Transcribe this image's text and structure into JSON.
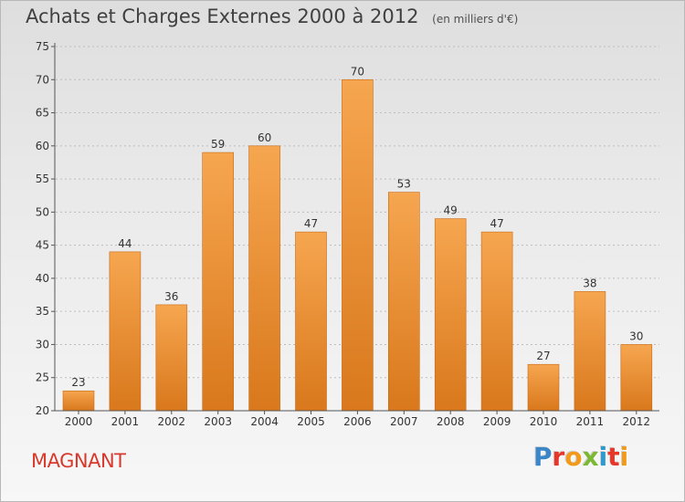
{
  "header": {
    "title": "Achats et Charges Externes 2000 à 2012",
    "subtitle": "(en milliers d'€)"
  },
  "town_name": "MAGNANT",
  "logo": {
    "text": "Proxiti",
    "letters": [
      "P",
      "r",
      "o",
      "x",
      "i",
      "t",
      "i"
    ]
  },
  "colors": {
    "bar_light": "#f6a650",
    "bar_dark": "#d9781c",
    "axis": "#555555",
    "gridline": "#bdbdbd",
    "town": "#d8392c"
  },
  "chart_data": {
    "type": "bar",
    "categories": [
      "2000",
      "2001",
      "2002",
      "2003",
      "2004",
      "2005",
      "2006",
      "2007",
      "2008",
      "2009",
      "2010",
      "2011",
      "2012"
    ],
    "values": [
      23,
      44,
      36,
      59,
      60,
      47,
      70,
      53,
      49,
      47,
      27,
      38,
      30
    ],
    "data_labels": [
      "23",
      "44",
      "36",
      "59",
      "60",
      "47",
      "70",
      "53",
      "49",
      "47",
      "27",
      "38",
      "30"
    ],
    "yticks": [
      20,
      25,
      30,
      35,
      40,
      45,
      50,
      55,
      60,
      65,
      70,
      75
    ],
    "ylim": [
      20,
      75
    ],
    "grid": true
  }
}
